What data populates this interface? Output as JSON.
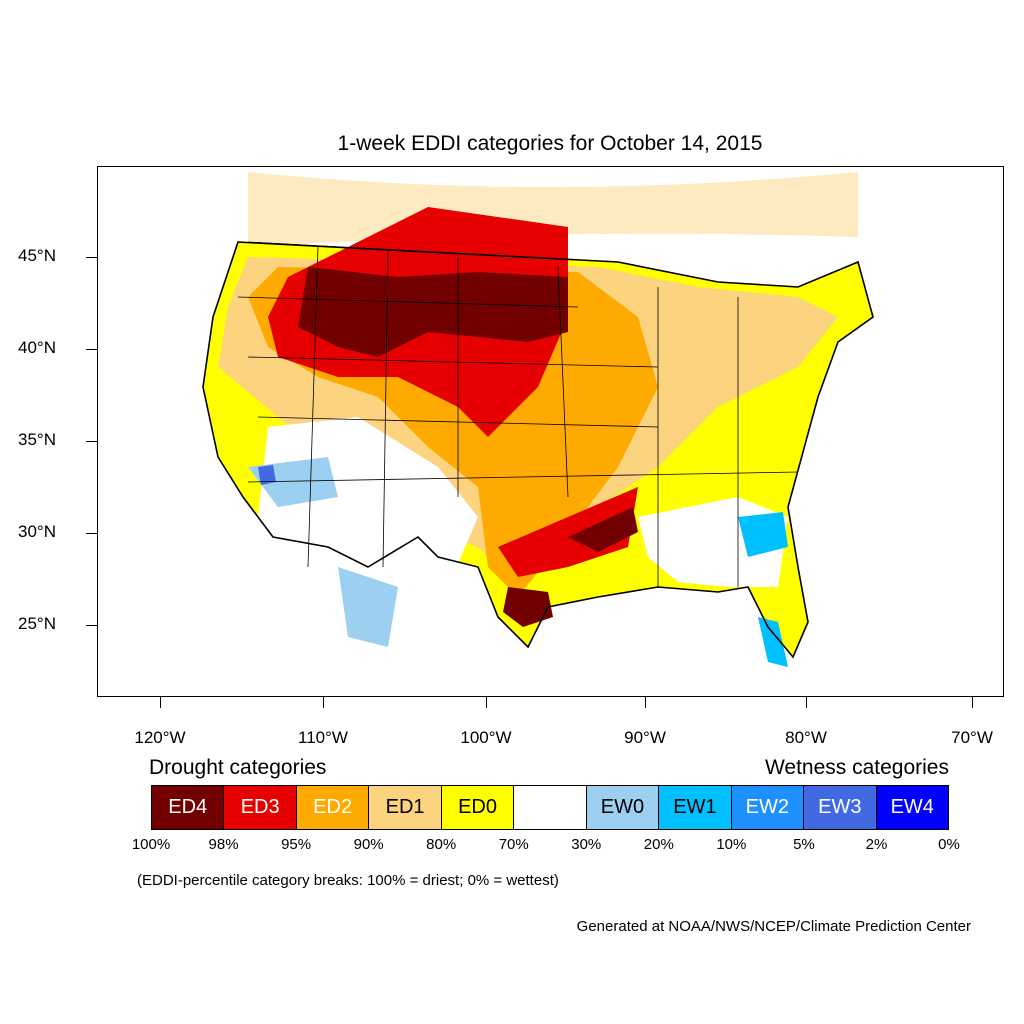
{
  "title": "1-week EDDI categories for October 14, 2015",
  "axes": {
    "lat_labels": [
      "45°N",
      "40°N",
      "35°N",
      "30°N",
      "25°N"
    ],
    "lon_labels": [
      "120°W",
      "110°W",
      "100°W",
      "90°W",
      "80°W",
      "70°W"
    ]
  },
  "legend": {
    "drought_heading": "Drought categories",
    "wetness_heading": "Wetness categories",
    "categories": [
      {
        "label": "ED4",
        "color": "#730000"
      },
      {
        "label": "ED3",
        "color": "#e60000"
      },
      {
        "label": "ED2",
        "color": "#ffaa00"
      },
      {
        "label": "ED1",
        "color": "#fcd37f"
      },
      {
        "label": "ED0",
        "color": "#ffff00"
      },
      {
        "label": "",
        "color": "#ffffff"
      },
      {
        "label": "EW0",
        "color": "#9ccff0"
      },
      {
        "label": "EW1",
        "color": "#00c0ff"
      },
      {
        "label": "EW2",
        "color": "#1e90ff"
      },
      {
        "label": "EW3",
        "color": "#4169e1"
      },
      {
        "label": "EW4",
        "color": "#0000ff"
      }
    ],
    "percent_breaks": [
      "100%",
      "98%",
      "95%",
      "90%",
      "80%",
      "70%",
      "30%",
      "20%",
      "10%",
      "5%",
      "2%",
      "0%"
    ]
  },
  "note": "(EDDI-percentile category breaks: 100% = driest; 0% = wettest)",
  "credit": "Generated at NOAA/NWS/NCEP/Climate Prediction Center"
}
